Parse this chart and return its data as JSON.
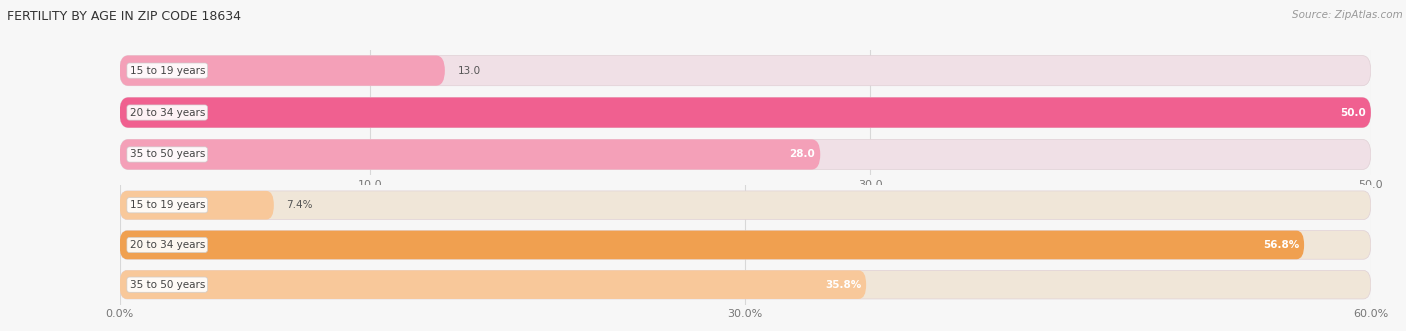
{
  "title": "FERTILITY BY AGE IN ZIP CODE 18634",
  "source": "Source: ZipAtlas.com",
  "top_section": {
    "bars": [
      {
        "label": "15 to 19 years",
        "value": 13.0,
        "bar_color": "#f4a0b8",
        "bg_color": "#f0e0e6"
      },
      {
        "label": "20 to 34 years",
        "value": 50.0,
        "bar_color": "#f06090",
        "bg_color": "#f0e0e6"
      },
      {
        "label": "35 to 50 years",
        "value": 28.0,
        "bar_color": "#f4a0b8",
        "bg_color": "#f0e0e6"
      }
    ],
    "x_ticks": [
      10.0,
      30.0,
      50.0
    ],
    "x_tick_labels": [
      "10.0",
      "30.0",
      "50.0"
    ],
    "x_min": 0,
    "x_max": 50.0
  },
  "bottom_section": {
    "bars": [
      {
        "label": "15 to 19 years",
        "value": 7.4,
        "bar_color": "#f8c89a",
        "bg_color": "#f0e6d8"
      },
      {
        "label": "20 to 34 years",
        "value": 56.8,
        "bar_color": "#f0a050",
        "bg_color": "#f0e6d8"
      },
      {
        "label": "35 to 50 years",
        "value": 35.8,
        "bar_color": "#f8c89a",
        "bg_color": "#f0e6d8"
      }
    ],
    "x_ticks": [
      0.0,
      30.0,
      60.0
    ],
    "x_tick_labels": [
      "0.0%",
      "30.0%",
      "60.0%"
    ],
    "x_min": 0,
    "x_max": 60.0
  },
  "label_color": "#444444",
  "background_color": "#f7f7f7",
  "grid_color": "#d8d8d8"
}
